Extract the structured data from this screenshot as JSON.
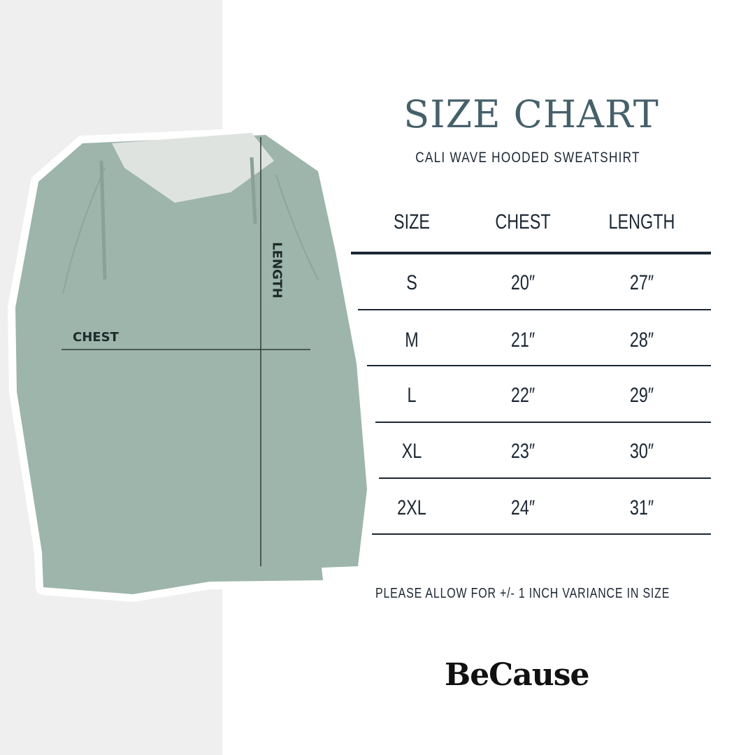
{
  "title": "SIZE CHART",
  "subtitle": "CALI WAVE HOODED SWEATSHIRT",
  "table": {
    "headers": [
      "SIZE",
      "CHEST",
      "LENGTH"
    ],
    "rows": [
      {
        "size": "S",
        "chest": "20″",
        "length": "27″"
      },
      {
        "size": "M",
        "chest": "21″",
        "length": "28″"
      },
      {
        "size": "L",
        "chest": "22″",
        "length": "29″"
      },
      {
        "size": "XL",
        "chest": "23″",
        "length": "30″"
      },
      {
        "size": "2XL",
        "chest": "24″",
        "length": "31″"
      }
    ]
  },
  "diagram": {
    "chest_label": "CHEST",
    "length_label": "LENGTH"
  },
  "note": "PLEASE ALLOW FOR +/- 1 INCH VARIANCE IN SIZE",
  "brand": "BeCause",
  "colors": {
    "title": "#46606a",
    "text": "#1c2733",
    "garment": "#9db5ab",
    "hood_lining": "#dfe3e0",
    "left_panel": "#efefef"
  }
}
